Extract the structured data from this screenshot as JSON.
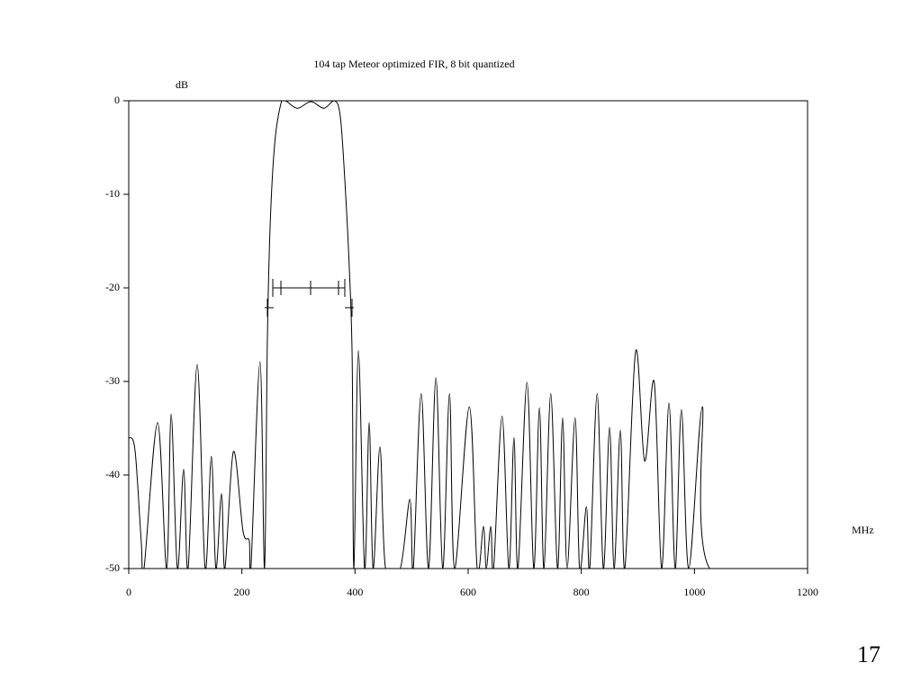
{
  "chart_data": {
    "type": "line",
    "title": "104 tap Meteor optimized FIR, 8 bit quantized",
    "ylabel": "dB",
    "xlabel": "MHz",
    "x": [
      0,
      11,
      22,
      27,
      51,
      67,
      75,
      86,
      97,
      105,
      121,
      135,
      146,
      154,
      164,
      170,
      185,
      202,
      213,
      216,
      232,
      240,
      245,
      250,
      258,
      269,
      277,
      298,
      322,
      345,
      364,
      374,
      382,
      390,
      395,
      398,
      406,
      417,
      425,
      432,
      444,
      454,
      480,
      497,
      503,
      517,
      530,
      543,
      555,
      567,
      576,
      602,
      616,
      627,
      632,
      640,
      645,
      660,
      672,
      681,
      688,
      704,
      716,
      726,
      734,
      746,
      758,
      767,
      775,
      789,
      797,
      809,
      815,
      828,
      839,
      850,
      858,
      869,
      877,
      896,
      912,
      929,
      942,
      955,
      966,
      977,
      990,
      1014,
      1027,
      1200
    ],
    "series": [
      {
        "color": "#000000",
        "values": [
          -36,
          -37.3,
          -47,
          -50,
          -34.4,
          -50,
          -33.5,
          -50,
          -39.4,
          -50,
          -28.2,
          -50,
          -38,
          -50,
          -42,
          -50,
          -37.5,
          -46,
          -47,
          -50,
          -27.9,
          -50,
          -25.8,
          -13.3,
          -4.6,
          -0.3,
          0,
          -0.8,
          -0.1,
          -0.8,
          0,
          -1.7,
          -8.5,
          -18,
          -27.7,
          -50,
          -26.7,
          -50,
          -34.4,
          -50,
          -37,
          -50,
          -50,
          -42.6,
          -50,
          -31.3,
          -50,
          -29.6,
          -50,
          -31.3,
          -50,
          -32.7,
          -50,
          -45.5,
          -50,
          -45.5,
          -50,
          -33.7,
          -50,
          -36,
          -50,
          -30.1,
          -50,
          -32.8,
          -50,
          -31.3,
          -50,
          -33.9,
          -50,
          -33.9,
          -50,
          -43.4,
          -50,
          -31.3,
          -50,
          -34.9,
          -50,
          -35.2,
          -50,
          -26.8,
          -38.5,
          -30.1,
          -50,
          -32.3,
          -50,
          -33,
          -50,
          -32.7,
          -50,
          -50
        ]
      }
    ],
    "xlim": [
      0,
      1200
    ],
    "xticks": [
      0,
      200,
      400,
      600,
      800,
      1000,
      1200
    ],
    "ylim": [
      -50,
      0
    ],
    "yticks": [
      0,
      -10,
      -20,
      -30,
      -40,
      -50
    ]
  },
  "page_number": "17"
}
